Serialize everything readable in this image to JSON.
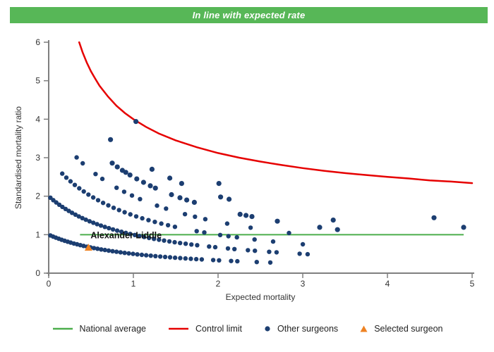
{
  "banner": {
    "text": "In line with expected rate",
    "bg_color": "#57b757",
    "text_color": "#ffffff"
  },
  "chart_data": {
    "type": "scatter",
    "title": "In line with expected rate",
    "xlabel": "Expected mortality",
    "ylabel": "Standardised mortality ratio",
    "xlim": [
      0,
      5
    ],
    "ylim": [
      0,
      6
    ],
    "x_ticks": [
      0,
      1,
      2,
      3,
      4,
      5
    ],
    "y_ticks": [
      0,
      1,
      2,
      3,
      4,
      5,
      6
    ],
    "grid": false,
    "legend_position": "bottom",
    "colors": {
      "other_surgeons": "#1c3e71",
      "control_limit": "#e60000",
      "national_average": "#4cae4c",
      "selected_surgeon": "#ee8222",
      "axis": "#7f7f7f"
    },
    "national_average": {
      "y": 1,
      "x_start": 0.37,
      "x_end": 4.9
    },
    "control_limit": {
      "formula": "smr = 1 + 3 / sqrt(expected)",
      "points": [
        [
          0.36,
          6.0
        ],
        [
          0.4,
          5.74
        ],
        [
          0.45,
          5.47
        ],
        [
          0.5,
          5.24
        ],
        [
          0.55,
          5.05
        ],
        [
          0.6,
          4.87
        ],
        [
          0.7,
          4.59
        ],
        [
          0.8,
          4.35
        ],
        [
          0.9,
          4.16
        ],
        [
          1.0,
          4.0
        ],
        [
          1.15,
          3.8
        ],
        [
          1.3,
          3.63
        ],
        [
          1.5,
          3.45
        ],
        [
          1.75,
          3.27
        ],
        [
          2.0,
          3.12
        ],
        [
          2.25,
          3.0
        ],
        [
          2.5,
          2.9
        ],
        [
          2.75,
          2.81
        ],
        [
          3.0,
          2.73
        ],
        [
          3.25,
          2.66
        ],
        [
          3.5,
          2.6
        ],
        [
          3.75,
          2.55
        ],
        [
          4.0,
          2.5
        ],
        [
          4.25,
          2.46
        ],
        [
          4.5,
          2.41
        ],
        [
          4.75,
          2.38
        ],
        [
          5.0,
          2.34
        ]
      ]
    },
    "surgeon_bands": {
      "formula": "smr = deaths / (1 + expected)",
      "dense": [
        {
          "deaths": 1,
          "x_start": 0.02,
          "x_end": 2.68,
          "base_step": 0.032,
          "gaps": [
            [
              1.85,
              1.93
            ],
            [
              2.06,
              2.13
            ],
            [
              2.25,
              2.45
            ],
            [
              2.52,
              2.6
            ]
          ]
        },
        {
          "deaths": 2,
          "x_start": 0.02,
          "x_end": 3.12,
          "base_step": 0.034,
          "gaps": [
            [
              1.76,
              1.83
            ],
            [
              1.98,
              2.06
            ],
            [
              2.2,
              2.29
            ],
            [
              2.46,
              2.56
            ],
            [
              2.7,
              2.94
            ]
          ]
        },
        {
          "deaths": 3,
          "x_start": 0.16,
          "x_end": 3.1,
          "base_step": 0.044,
          "gaps": [
            [
              1.56,
              1.66
            ],
            [
              1.92,
              2.02
            ],
            [
              2.28,
              2.4
            ],
            [
              2.52,
              2.6
            ],
            [
              2.68,
              2.94
            ]
          ]
        },
        {
          "deaths": 4,
          "x_start": 0.33,
          "x_end": 3.33,
          "base_step": 0.06,
          "gaps": [
            [
              0.45,
              0.54
            ],
            [
              0.7,
              0.77
            ],
            [
              1.1,
              1.2
            ],
            [
              1.48,
              1.6
            ],
            [
              1.92,
              2.08
            ],
            [
              2.24,
              2.36
            ],
            [
              2.48,
              2.54
            ],
            [
              2.66,
              2.72
            ],
            [
              2.92,
              3.22
            ]
          ]
        }
      ],
      "sparse": [
        {
          "deaths": 5,
          "points": [
            [
              0.75,
              2.86
            ],
            [
              0.81,
              2.76
            ],
            [
              0.87,
              2.67
            ],
            [
              0.91,
              2.62
            ],
            [
              0.96,
              2.55
            ],
            [
              1.04,
              2.45
            ],
            [
              1.12,
              2.36
            ],
            [
              1.2,
              2.27
            ],
            [
              1.26,
              2.21
            ],
            [
              1.45,
              2.04
            ],
            [
              1.55,
              1.96
            ],
            [
              1.63,
              1.9
            ],
            [
              1.72,
              1.84
            ],
            [
              2.26,
              1.53
            ],
            [
              2.33,
              1.5
            ],
            [
              2.4,
              1.47
            ],
            [
              2.7,
              1.35
            ],
            [
              3.2,
              1.19
            ],
            [
              3.41,
              1.13
            ]
          ]
        },
        {
          "deaths": 6,
          "points": [
            [
              0.73,
              3.47
            ],
            [
              1.22,
              2.7
            ],
            [
              1.43,
              2.47
            ],
            [
              1.57,
              2.33
            ],
            [
              2.03,
              1.98
            ],
            [
              2.13,
              1.92
            ],
            [
              3.36,
              1.38
            ]
          ]
        },
        {
          "deaths": 7,
          "points": [
            [
              2.01,
              2.33
            ],
            [
              4.9,
              1.19
            ]
          ]
        },
        {
          "deaths": 8,
          "points": [
            [
              1.03,
              3.94
            ],
            [
              4.55,
              1.44
            ]
          ]
        }
      ]
    },
    "selected_surgeon": {
      "name": "Alexander Liddle",
      "x": 0.47,
      "y": 0.665
    }
  },
  "legend": {
    "items": [
      {
        "label": "National average",
        "marker": "line",
        "color": "#4cae4c"
      },
      {
        "label": "Control limit",
        "marker": "line",
        "color": "#e60000"
      },
      {
        "label": "Other surgeons",
        "marker": "dot",
        "color": "#1c3e71"
      },
      {
        "label": "Selected surgeon",
        "marker": "triangle",
        "color": "#ee8222"
      }
    ]
  }
}
